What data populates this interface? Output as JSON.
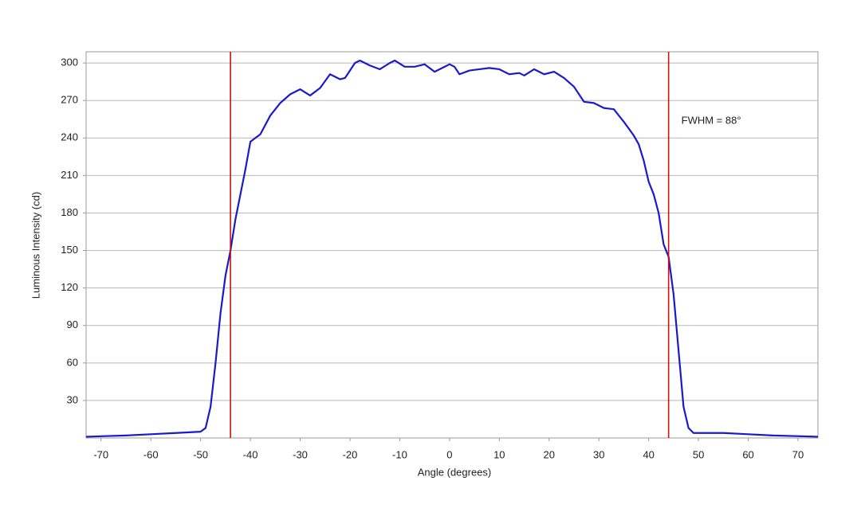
{
  "chart_data": {
    "type": "line",
    "x_label": "Angle (degrees)",
    "y_label": "Luminous Intensity (cd)",
    "annotation": "FWHM = 88°",
    "vlines": [
      -44,
      44
    ],
    "vline_color": "#cc1111",
    "xlim": [
      -73,
      74
    ],
    "xticks": [
      -70,
      -60,
      -50,
      -40,
      -30,
      -20,
      -10,
      0,
      10,
      20,
      30,
      40,
      50,
      60,
      70
    ],
    "ylim": [
      0,
      309
    ],
    "yticks": [
      30,
      60,
      90,
      120,
      150,
      180,
      210,
      240,
      270,
      300
    ],
    "grid": true,
    "series": [
      {
        "color": "#1a1acc",
        "x": [
          -73,
          -65,
          -60,
          -55,
          -50,
          -49,
          -48,
          -47,
          -46,
          -45,
          -44,
          -43,
          -42,
          -41,
          -40,
          -39,
          -38,
          -36,
          -34,
          -32,
          -30,
          -28,
          -26,
          -24,
          -22,
          -21,
          -19,
          -18,
          -16,
          -14,
          -12,
          -11,
          -9,
          -7,
          -5,
          -3,
          -1,
          0,
          1,
          2,
          4,
          6,
          8,
          10,
          12,
          14,
          15,
          17,
          19,
          21,
          23,
          25,
          27,
          29,
          31,
          33,
          35,
          37,
          38,
          39,
          40,
          41,
          42,
          43,
          44,
          45,
          46,
          47,
          48,
          49,
          55,
          60,
          65,
          74
        ],
        "values": [
          1,
          2,
          3,
          4,
          5,
          8,
          25,
          60,
          100,
          130,
          150,
          175,
          195,
          215,
          237,
          240,
          243,
          258,
          268,
          275,
          279,
          274,
          280,
          291,
          287,
          288,
          300,
          302,
          298,
          295,
          300,
          302,
          297,
          297,
          299,
          293,
          297,
          299,
          297,
          291,
          294,
          295,
          296,
          295,
          291,
          292,
          290,
          295,
          291,
          293,
          288,
          281,
          269,
          268,
          264,
          263,
          253,
          242,
          235,
          222,
          205,
          195,
          180,
          155,
          145,
          115,
          70,
          25,
          8,
          4,
          4,
          3,
          2,
          1
        ]
      }
    ]
  }
}
